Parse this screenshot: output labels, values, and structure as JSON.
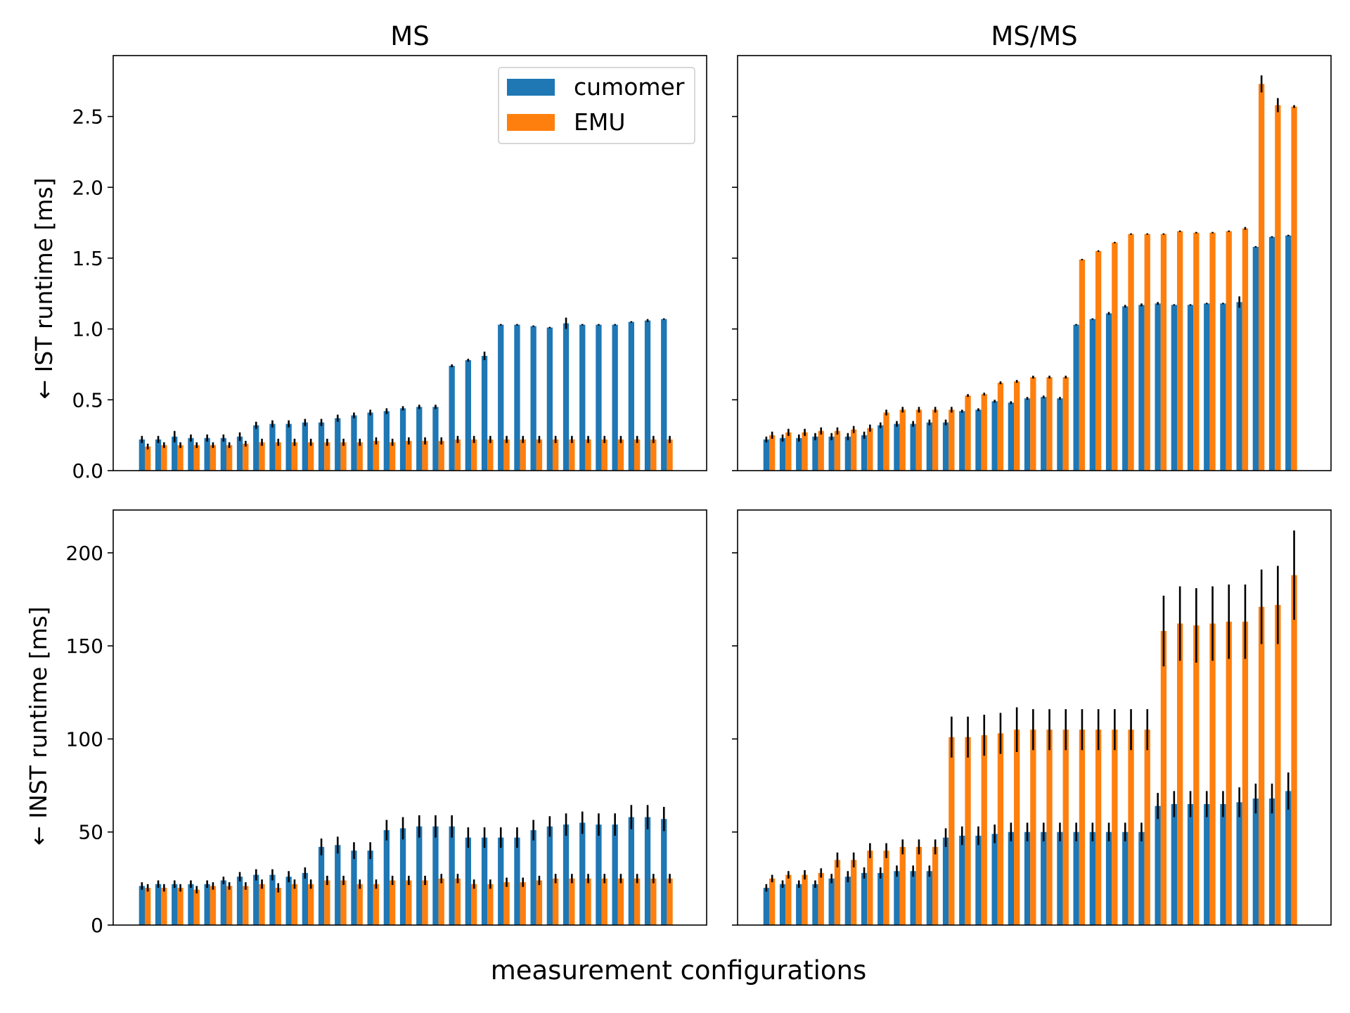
{
  "figure": {
    "supxlabel": "measurement configurations",
    "colors": {
      "cumomer": "#1f77b4",
      "EMU": "#ff7f0e",
      "error": "#000000"
    }
  },
  "chart_data": [
    {
      "type": "bar",
      "panel": "top-left",
      "title": "MS",
      "xlabel": "",
      "ylabel": "← IST runtime [ms]",
      "ylim": [
        0,
        2.93
      ],
      "yticks": [
        0.0,
        0.5,
        1.0,
        1.5,
        2.0,
        2.5
      ],
      "ytick_labels": [
        "0.0",
        "0.5",
        "1.0",
        "1.5",
        "2.0",
        "2.5"
      ],
      "legend": {
        "location": "top-right",
        "entries": [
          "cumomer",
          "EMU"
        ]
      },
      "series": [
        {
          "name": "cumomer",
          "values": [
            0.22,
            0.22,
            0.24,
            0.23,
            0.23,
            0.23,
            0.24,
            0.32,
            0.33,
            0.33,
            0.34,
            0.34,
            0.37,
            0.39,
            0.41,
            0.42,
            0.44,
            0.45,
            0.45,
            0.74,
            0.78,
            0.81,
            1.03,
            1.03,
            1.02,
            1.01,
            1.04,
            1.03,
            1.03,
            1.03,
            1.05,
            1.06,
            1.07
          ],
          "errors": [
            0.025,
            0.025,
            0.04,
            0.025,
            0.025,
            0.025,
            0.03,
            0.025,
            0.025,
            0.025,
            0.025,
            0.025,
            0.025,
            0.02,
            0.02,
            0.02,
            0.015,
            0.015,
            0.015,
            0.01,
            0.01,
            0.03,
            0.005,
            0.005,
            0.005,
            0.005,
            0.04,
            0.005,
            0.005,
            0.005,
            0.005,
            0.01,
            0.005
          ]
        },
        {
          "name": "EMU",
          "values": [
            0.17,
            0.18,
            0.18,
            0.18,
            0.18,
            0.18,
            0.19,
            0.2,
            0.2,
            0.2,
            0.2,
            0.2,
            0.2,
            0.2,
            0.21,
            0.2,
            0.21,
            0.21,
            0.21,
            0.22,
            0.22,
            0.22,
            0.22,
            0.22,
            0.22,
            0.22,
            0.22,
            0.22,
            0.22,
            0.22,
            0.22,
            0.22,
            0.22
          ],
          "errors": [
            0.02,
            0.02,
            0.02,
            0.02,
            0.02,
            0.02,
            0.02,
            0.025,
            0.025,
            0.025,
            0.025,
            0.025,
            0.025,
            0.025,
            0.025,
            0.025,
            0.025,
            0.025,
            0.025,
            0.025,
            0.025,
            0.025,
            0.025,
            0.025,
            0.025,
            0.025,
            0.025,
            0.025,
            0.025,
            0.025,
            0.025,
            0.025,
            0.025
          ]
        }
      ]
    },
    {
      "type": "bar",
      "panel": "top-right",
      "title": "MS/MS",
      "xlabel": "",
      "ylabel": "",
      "ylim": [
        0,
        2.93
      ],
      "yticks": [
        0.0,
        0.5,
        1.0,
        1.5,
        2.0,
        2.5
      ],
      "ytick_labels": [],
      "series": [
        {
          "name": "cumomer",
          "values": [
            0.22,
            0.23,
            0.23,
            0.24,
            0.24,
            0.24,
            0.25,
            0.32,
            0.33,
            0.33,
            0.34,
            0.34,
            0.42,
            0.43,
            0.49,
            0.48,
            0.51,
            0.52,
            0.51,
            1.03,
            1.07,
            1.11,
            1.16,
            1.17,
            1.18,
            1.17,
            1.17,
            1.18,
            1.18,
            1.19,
            1.58,
            1.65,
            1.66
          ],
          "errors": [
            0.02,
            0.025,
            0.025,
            0.025,
            0.025,
            0.025,
            0.025,
            0.02,
            0.02,
            0.02,
            0.02,
            0.02,
            0.01,
            0.01,
            0.01,
            0.01,
            0.01,
            0.01,
            0.01,
            0.005,
            0.005,
            0.01,
            0.01,
            0.01,
            0.01,
            0.005,
            0.005,
            0.005,
            0.005,
            0.04,
            0.005,
            0.005,
            0.005
          ]
        },
        {
          "name": "EMU",
          "values": [
            0.25,
            0.27,
            0.27,
            0.28,
            0.28,
            0.29,
            0.3,
            0.41,
            0.43,
            0.43,
            0.43,
            0.43,
            0.53,
            0.54,
            0.62,
            0.63,
            0.66,
            0.66,
            0.66,
            1.49,
            1.55,
            1.61,
            1.67,
            1.67,
            1.67,
            1.69,
            1.68,
            1.68,
            1.69,
            1.71,
            2.73,
            2.58,
            2.57
          ],
          "errors": [
            0.025,
            0.025,
            0.025,
            0.025,
            0.025,
            0.025,
            0.025,
            0.02,
            0.02,
            0.02,
            0.02,
            0.02,
            0.01,
            0.01,
            0.01,
            0.01,
            0.01,
            0.01,
            0.01,
            0.005,
            0.005,
            0.005,
            0.005,
            0.005,
            0.005,
            0.005,
            0.005,
            0.005,
            0.005,
            0.01,
            0.06,
            0.05,
            0.01
          ]
        }
      ]
    },
    {
      "type": "bar",
      "panel": "bottom-left",
      "title": "",
      "xlabel": "",
      "ylabel": "← INST runtime [ms]",
      "ylim": [
        0,
        223
      ],
      "yticks": [
        0,
        50,
        100,
        150,
        200
      ],
      "ytick_labels": [
        "0",
        "50",
        "100",
        "150",
        "200"
      ],
      "series": [
        {
          "name": "cumomer",
          "values": [
            21,
            22,
            22,
            22,
            22,
            24,
            26,
            27,
            27,
            26,
            28,
            42,
            43,
            40,
            40,
            51,
            52,
            53,
            53,
            53,
            47,
            47,
            47,
            47,
            51,
            53,
            54,
            55,
            54,
            54,
            58,
            58,
            57
          ],
          "errors": [
            2,
            2,
            2,
            2,
            2,
            2,
            2.5,
            3,
            3,
            3,
            3,
            4.5,
            4.5,
            4.5,
            4.5,
            5.5,
            6,
            6,
            6,
            6,
            5.5,
            5.5,
            5.5,
            5.5,
            5.5,
            5.5,
            6,
            6,
            6,
            6,
            6.5,
            6.5,
            6.5
          ]
        },
        {
          "name": "EMU",
          "values": [
            20,
            20,
            20,
            19,
            21,
            21,
            21,
            22,
            20,
            22,
            22,
            24,
            24,
            22,
            22,
            24,
            24,
            24,
            25,
            25,
            22,
            22,
            23,
            23,
            24,
            25,
            25,
            25,
            25,
            25,
            25,
            25,
            25
          ],
          "errors": [
            2,
            2,
            2,
            2,
            2,
            2,
            2,
            2.5,
            2.5,
            2.5,
            2.5,
            2.5,
            2.5,
            2.5,
            2.5,
            2.5,
            2.5,
            2.5,
            2.5,
            2.5,
            2.5,
            2.5,
            2.5,
            2.5,
            2.5,
            2.5,
            2.5,
            2.5,
            2.5,
            2.5,
            2.5,
            2.5,
            2.5
          ]
        }
      ]
    },
    {
      "type": "bar",
      "panel": "bottom-right",
      "title": "",
      "xlabel": "",
      "ylabel": "",
      "ylim": [
        0,
        223
      ],
      "yticks": [
        0,
        50,
        100,
        150,
        200
      ],
      "ytick_labels": [],
      "series": [
        {
          "name": "cumomer",
          "values": [
            20,
            22,
            22,
            22,
            25,
            26,
            28,
            28,
            29,
            29,
            29,
            47,
            48,
            48,
            49,
            50,
            50,
            50,
            50,
            50,
            50,
            50,
            50,
            50,
            64,
            65,
            65,
            65,
            65,
            66,
            68,
            68,
            72
          ],
          "errors": [
            2,
            2,
            2,
            2,
            2.5,
            3,
            3,
            3,
            3,
            3,
            3,
            5,
            5,
            5,
            5,
            5,
            5,
            5,
            5,
            5,
            5,
            5,
            5,
            5,
            7,
            7,
            7,
            7,
            7,
            8,
            8,
            8,
            10
          ]
        },
        {
          "name": "EMU",
          "values": [
            25,
            27,
            27,
            28,
            35,
            35,
            40,
            40,
            42,
            42,
            42,
            101,
            101,
            102,
            103,
            105,
            105,
            105,
            105,
            105,
            105,
            105,
            105,
            105,
            158,
            162,
            161,
            162,
            163,
            163,
            171,
            172,
            188
          ],
          "errors": [
            2,
            2,
            2.5,
            2.5,
            4,
            4,
            4,
            4,
            4,
            4,
            4,
            11,
            11,
            11,
            11,
            12,
            11,
            11,
            11,
            11,
            11,
            11,
            11,
            11,
            19,
            20,
            20,
            20,
            20,
            20,
            20,
            21,
            24
          ]
        }
      ]
    }
  ]
}
